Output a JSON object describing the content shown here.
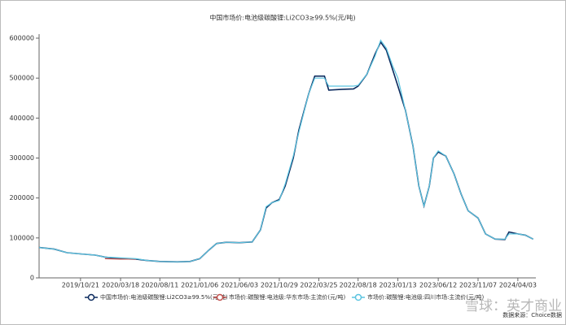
{
  "chart_data": {
    "type": "line",
    "title": "中国市场价:电池级碳酸锂:Li2CO3≥99.5%(元/吨)",
    "source": "数据来源：Choice数据",
    "watermark": "雪球：英才商业",
    "x": [
      "2019/05/20",
      "2019/07/15",
      "2019/09/01",
      "2019/10/21",
      "2019/12/15",
      "2020/01/20",
      "2020/03/18",
      "2020/05/15",
      "2020/06/20",
      "2020/08/11",
      "2020/10/15",
      "2020/12/01",
      "2021/01/06",
      "2021/02/10",
      "2021/03/10",
      "2021/04/15",
      "2021/06/03",
      "2021/07/20",
      "2021/08/20",
      "2021/09/10",
      "2021/10/01",
      "2021/10/29",
      "2021/11/20",
      "2021/12/20",
      "2022/01/10",
      "2022/02/15",
      "2022/03/10",
      "2022/04/15",
      "2022/05/01",
      "2022/06/20",
      "2022/08/01",
      "2022/08/18",
      "2022/09/20",
      "2022/10/20",
      "2022/11/10",
      "2022/12/01",
      "2022/12/25",
      "2023/01/13",
      "2023/02/10",
      "2023/03/10",
      "2023/04/01",
      "2023/04/20",
      "2023/05/10",
      "2023/05/25",
      "2023/06/12",
      "2023/07/10",
      "2023/08/10",
      "2023/09/05",
      "2023/10/01",
      "2023/11/07",
      "2023/12/05",
      "2024/01/10",
      "2024/02/15",
      "2024/03/01",
      "2024/04/03",
      "2024/05/01",
      "2024/05/30"
    ],
    "series": [
      {
        "name": "中国市场价:电池级碳酸锂:Li2CO3≥99.5%(元/吨)",
        "color": "#0b2a5e",
        "values": [
          76000,
          72000,
          63000,
          60000,
          57000,
          52000,
          48000,
          47000,
          44000,
          41000,
          40000,
          41000,
          48000,
          70000,
          86000,
          89000,
          88000,
          90000,
          120000,
          175000,
          188000,
          196000,
          230000,
          300000,
          370000,
          460000,
          505000,
          505000,
          470000,
          472000,
          473000,
          480000,
          510000,
          560000,
          590000,
          570000,
          520000,
          480000,
          420000,
          330000,
          230000,
          180000,
          230000,
          300000,
          315000,
          305000,
          260000,
          210000,
          168000,
          150000,
          110000,
          97000,
          96000,
          115000,
          110000,
          107000,
          97000
        ]
      },
      {
        "name": "市场价:碳酸锂:电池级:华东市场:主流价(元/吨)",
        "color": "#c0504d",
        "values": [
          null,
          null,
          null,
          null,
          null,
          48000,
          47000,
          47000,
          null,
          null,
          null,
          null,
          null,
          null,
          null,
          null,
          null,
          null,
          null,
          null,
          null,
          null,
          null,
          null,
          null,
          null,
          null,
          null,
          null,
          null,
          null,
          null,
          null,
          null,
          null,
          null,
          null,
          null,
          null,
          null,
          null,
          null,
          null,
          null,
          null,
          null,
          null,
          null,
          null,
          null,
          null,
          null,
          null,
          null,
          null,
          null,
          null
        ]
      },
      {
        "name": "市场价:碳酸锂:电池级:四川市场:主流价(元/吨)",
        "color": "#5bc4e0",
        "values": [
          76000,
          72000,
          63000,
          60000,
          57000,
          52000,
          50000,
          48000,
          44000,
          41000,
          40000,
          41000,
          48000,
          70000,
          86000,
          89000,
          88000,
          90000,
          120000,
          178000,
          188000,
          194000,
          235000,
          305000,
          365000,
          460000,
          500000,
          500000,
          480000,
          480000,
          480000,
          482000,
          510000,
          555000,
          595000,
          575000,
          530000,
          500000,
          420000,
          330000,
          230000,
          180000,
          230000,
          300000,
          318000,
          305000,
          260000,
          210000,
          168000,
          150000,
          110000,
          97000,
          97000,
          110000,
          110000,
          107000,
          97000
        ]
      }
    ],
    "xlim": [
      "2019/05/20",
      "2024/06/09"
    ],
    "xticks": [
      "2019/10/21",
      "2020/03/18",
      "2020/08/11",
      "2021/01/06",
      "2021/06/03",
      "2021/10/29",
      "2022/03/25",
      "2022/08/18",
      "2023/01/13",
      "2023/06/12",
      "2023/11/07",
      "2024/04/03"
    ],
    "ylim": [
      0,
      600000
    ],
    "yticks": [
      0,
      100000,
      200000,
      300000,
      400000,
      500000,
      600000
    ]
  }
}
